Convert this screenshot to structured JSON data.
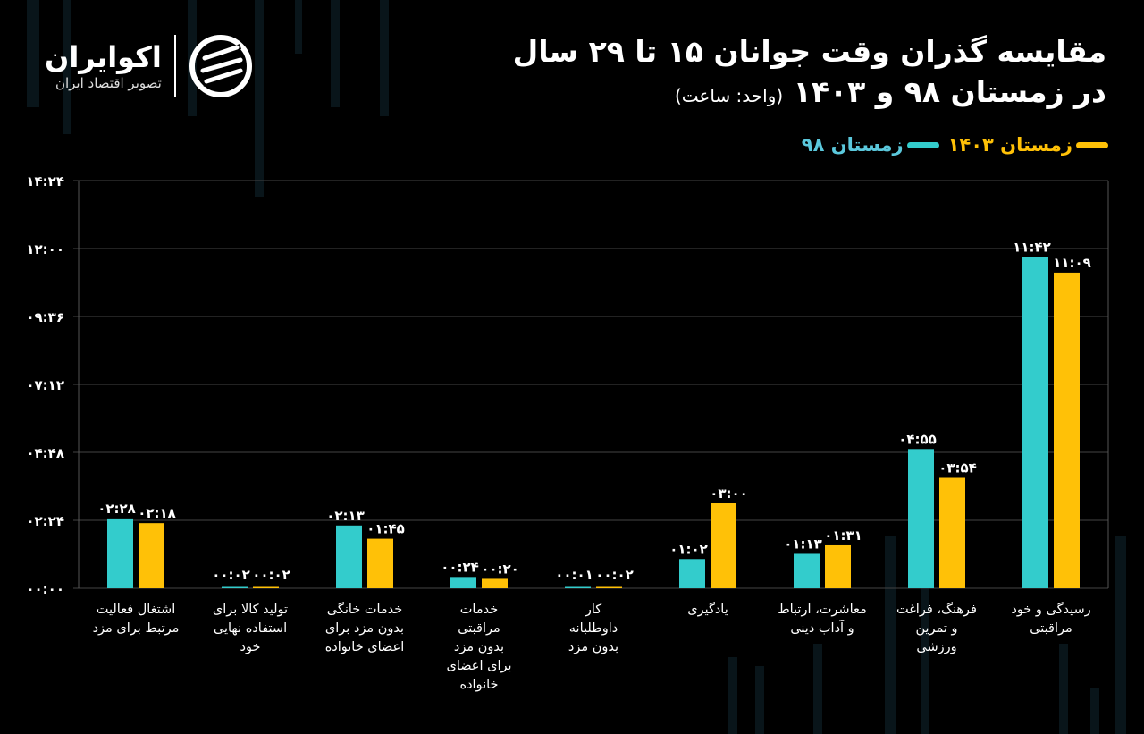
{
  "logo": {
    "name": "اکوایران",
    "tagline": "تصویر اقتصاد ایران"
  },
  "title": {
    "line1": "مقایسه گذران وقت جوانان ۱۵ تا ۲۹ سال",
    "line2": "در زمستان ۹۸ و ۱۴۰۳",
    "unit": "(واحد: ساعت)"
  },
  "colors": {
    "background": "#000000",
    "series_98": "#33cccc",
    "series_1403": "#ffc107",
    "legend_98_text": "#5bc8dc",
    "legend_1403_text": "#ffc107"
  },
  "chart_data": {
    "type": "bar",
    "title": "مقایسه گذران وقت جوانان ۱۵ تا ۲۹ سال در زمستان ۹۸ و ۱۴۰۳",
    "ylabel": "(واحد: ساعت)",
    "ylim": [
      "۰۰:۰۰",
      "۱۴:۲۴"
    ],
    "yticks": [
      "۰۰:۰۰",
      "۰۲:۲۴",
      "۰۴:۴۸",
      "۰۷:۱۲",
      "۰۹:۳۶",
      "۱۲:۰۰",
      "۱۴:۲۴"
    ],
    "grid": true,
    "legend_position": "top-right",
    "categories": [
      "اشتغال فعالیت\nمرتبط برای مزد",
      "تولید کالا برای\nاستفاده نهایی\nخود",
      "خدمات خانگی\nبدون مزد برای\nاعضای خانواده",
      "خدمات\nمراقبتی\nبدون مزد\nبرای اعضای\nخانواده",
      "کار\nداوطلبانه\nبدون مزد",
      "یادگیری",
      "معاشرت، ارتباط\nو آداب دینی",
      "فرهنگ، فراغت\nو تمرین\nورزشی",
      "رسیدگی و خود\nمراقبتی"
    ],
    "series": [
      {
        "name": "زمستان ۹۸",
        "values": [
          "۰۲:۲۸",
          "۰۰:۰۲",
          "۰۲:۱۳",
          "۰۰:۲۴",
          "۰۰:۰۱",
          "۰۱:۰۲",
          "۰۱:۱۳",
          "۰۴:۵۵",
          "۱۱:۴۲"
        ]
      },
      {
        "name": "زمستان ۱۴۰۳",
        "values": [
          "۰۲:۱۸",
          "۰۰:۰۲",
          "۰۱:۴۵",
          "۰۰:۲۰",
          "۰۰:۰۲",
          "۰۳:۰۰",
          "۰۱:۳۱",
          "۰۳:۵۴",
          "۱۱:۰۹"
        ]
      }
    ]
  }
}
